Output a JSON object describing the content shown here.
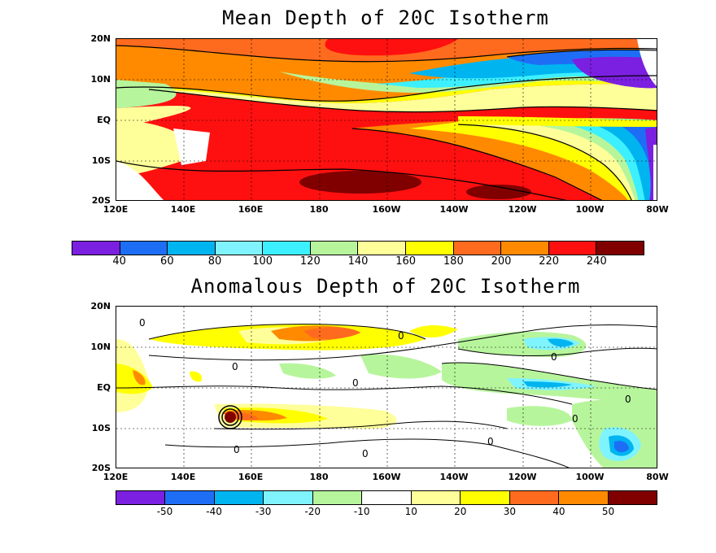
{
  "title_mean": "Mean Depth of 20C Isotherm",
  "title_anom": "Anomalous Depth of 20C Isotherm",
  "lat_labels": [
    "20N",
    "10N",
    "EQ",
    "10S",
    "20S"
  ],
  "lon_labels": [
    "120E",
    "140E",
    "160E",
    "180",
    "160W",
    "140W",
    "120W",
    "100W",
    "80W"
  ],
  "mean_colorbar": {
    "labels": [
      "40",
      "60",
      "80",
      "100",
      "120",
      "140",
      "160",
      "180",
      "200",
      "220",
      "240"
    ],
    "colors": [
      "#7b1fe0",
      "#1e6ef5",
      "#00b4f0",
      "#7ff4ff",
      "#3cf0ff",
      "#b7f59c",
      "#ffff9a",
      "#ffff00",
      "#ff6b1e",
      "#ff8a00",
      "#ff1010",
      "#800000"
    ]
  },
  "anom_colorbar": {
    "labels": [
      "-50",
      "-40",
      "-30",
      "-20",
      "-10",
      "10",
      "20",
      "30",
      "40",
      "50"
    ],
    "colors": [
      "#7b1fe0",
      "#1e6ef5",
      "#00b4f0",
      "#7ff4ff",
      "#b7f59c",
      "#ffffff",
      "#ffff9a",
      "#ffff00",
      "#ff6b1e",
      "#ff8a00",
      "#800000"
    ]
  },
  "anom_contour_label": "0"
}
